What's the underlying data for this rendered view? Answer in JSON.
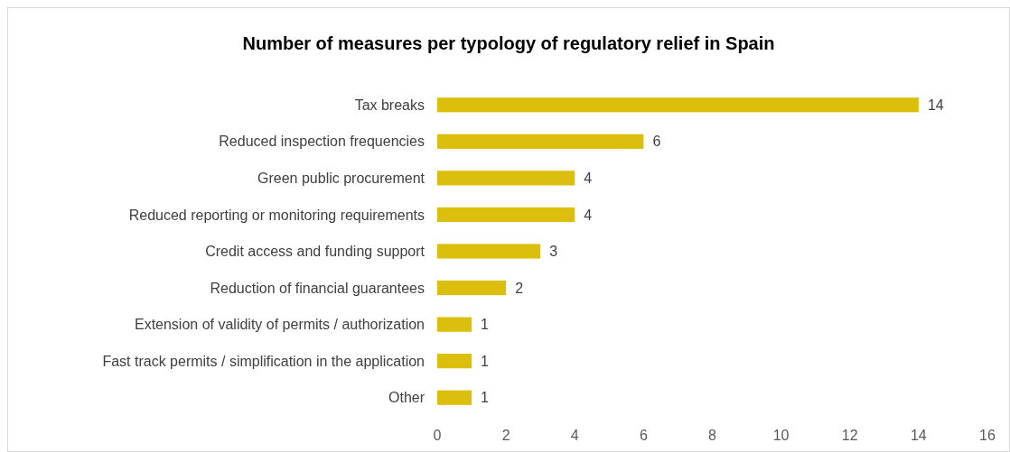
{
  "chart_data": {
    "type": "bar",
    "orientation": "horizontal",
    "title": "Number of measures per typology of regulatory relief in Spain",
    "categories": [
      "Tax breaks",
      "Reduced inspection frequencies",
      "Green public procurement",
      "Reduced reporting or monitoring requirements",
      "Credit access and funding support",
      "Reduction of financial guarantees",
      "Extension of validity of permits / authorization",
      "Fast track permits / simplification in the application",
      "Other"
    ],
    "values": [
      14,
      6,
      4,
      4,
      3,
      2,
      1,
      1,
      1
    ],
    "color": "#dcbf0c",
    "xlim": [
      0,
      16
    ],
    "xticks": [
      0,
      2,
      4,
      6,
      8,
      10,
      12,
      14,
      16
    ],
    "data_labels": true,
    "grid": false
  }
}
